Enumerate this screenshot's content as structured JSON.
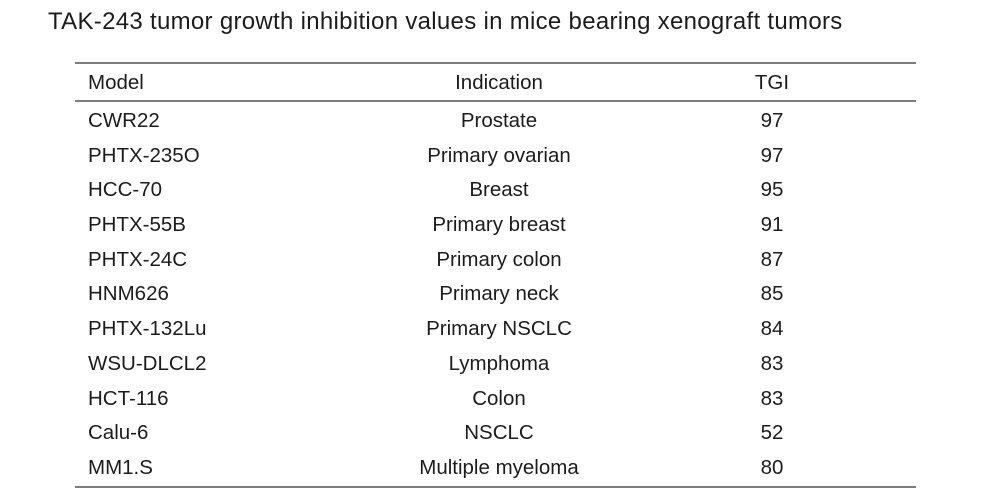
{
  "page_title": "TAK-243 tumor growth inhibition values in mice bearing xenograft tumors",
  "colors": {
    "background": "#ffffff",
    "text": "#1c1c1c",
    "rule": "#7d7d7d"
  },
  "chart_data": {
    "type": "table",
    "title": "TAK-243 tumor growth inhibition values in mice bearing xenograft tumors",
    "columns": [
      "Model",
      "Indication",
      "TGI"
    ],
    "rows": [
      [
        "CWR22",
        "Prostate",
        97
      ],
      [
        "PHTX-235O",
        "Primary ovarian",
        97
      ],
      [
        "HCC-70",
        "Breast",
        95
      ],
      [
        "PHTX-55B",
        "Primary breast",
        91
      ],
      [
        "PHTX-24C",
        "Primary colon",
        87
      ],
      [
        "HNM626",
        "Primary neck",
        85
      ],
      [
        "PHTX-132Lu",
        "Primary NSCLC",
        84
      ],
      [
        "WSU-DLCL2",
        "Lymphoma",
        83
      ],
      [
        "HCT-116",
        "Colon",
        83
      ],
      [
        "Calu-6",
        "NSCLC",
        52
      ],
      [
        "MM1.S",
        "Multiple myeloma",
        80
      ]
    ],
    "layout": {
      "grid": false,
      "rules": "horizontal-only",
      "model_align": "left",
      "indication_align": "center",
      "tgi_align": "center"
    }
  }
}
